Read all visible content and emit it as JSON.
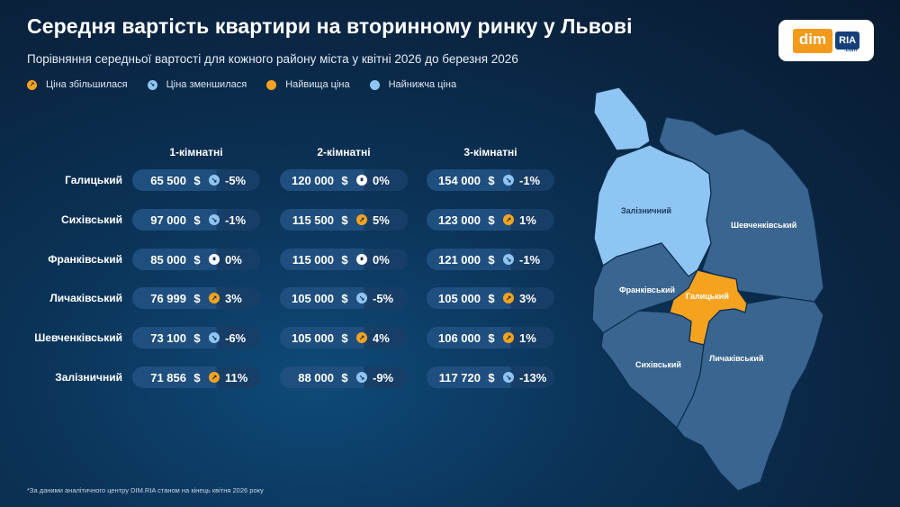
{
  "title": "Середня вартість квартири на вторинному ринку у Львові",
  "subtitle": "Порівняння середньої вартості для кожного району міста у квітні 2026 до березня 2026",
  "logo": {
    "dim": "dim",
    "ria": "RIA",
    "ria_small": ".com"
  },
  "legend": {
    "increased": "Ціна збільшилася",
    "decreased": "Ціна зменшилася",
    "highest": "Найвища ціна",
    "lowest": "Найнижча ціна"
  },
  "colors": {
    "accent_orange": "#f5a31f",
    "light_blue": "#8ec5f2",
    "district_blue": "#3a6590",
    "background": "#0b3358"
  },
  "columns": [
    "1-кімнатні",
    "2-кімнатні",
    "3-кімнатні"
  ],
  "currency": "$",
  "rows": [
    {
      "district": "Галицький",
      "cells": [
        {
          "price": "65 500",
          "trend": "down",
          "change": "-5%"
        },
        {
          "price": "120 000",
          "trend": "same",
          "change": "0%"
        },
        {
          "price": "154 000",
          "trend": "down",
          "change": "-1%"
        }
      ]
    },
    {
      "district": "Сихівський",
      "cells": [
        {
          "price": "97 000",
          "trend": "down",
          "change": "-1%"
        },
        {
          "price": "115 500",
          "trend": "up",
          "change": "5%"
        },
        {
          "price": "123 000",
          "trend": "up",
          "change": "1%"
        }
      ]
    },
    {
      "district": "Франківський",
      "cells": [
        {
          "price": "85 000",
          "trend": "same",
          "change": "0%"
        },
        {
          "price": "115 000",
          "trend": "same",
          "change": "0%"
        },
        {
          "price": "121 000",
          "trend": "down",
          "change": "-1%"
        }
      ]
    },
    {
      "district": "Личаківський",
      "cells": [
        {
          "price": "76 999",
          "trend": "up",
          "change": "3%"
        },
        {
          "price": "105 000",
          "trend": "down",
          "change": "-5%"
        },
        {
          "price": "105 000",
          "trend": "up",
          "change": "3%"
        }
      ]
    },
    {
      "district": "Шевченківський",
      "cells": [
        {
          "price": "73 100",
          "trend": "down",
          "change": "-6%"
        },
        {
          "price": "105 000",
          "trend": "up",
          "change": "4%"
        },
        {
          "price": "106 000",
          "trend": "up",
          "change": "1%"
        }
      ]
    },
    {
      "district": "Залізничний",
      "cells": [
        {
          "price": "71 856",
          "trend": "up",
          "change": "11%"
        },
        {
          "price": "88 000",
          "trend": "down",
          "change": "-9%"
        },
        {
          "price": "117 720",
          "trend": "down",
          "change": "-13%"
        }
      ]
    }
  ],
  "map": {
    "labels": {
      "zaliznychnyi": "Залізничний",
      "shevchenkivskyi": "Шевченківський",
      "frankivskyi": "Франківський",
      "halytskyi": "Галицький",
      "sykhivskyi": "Сихівський",
      "lychakivskyi": "Личаківський"
    },
    "highest": "Галицький",
    "lowest": "Залізничний"
  },
  "footnote": "*За даними аналітичного центру DIM.RIA станом на кінець квітня 2026 року"
}
